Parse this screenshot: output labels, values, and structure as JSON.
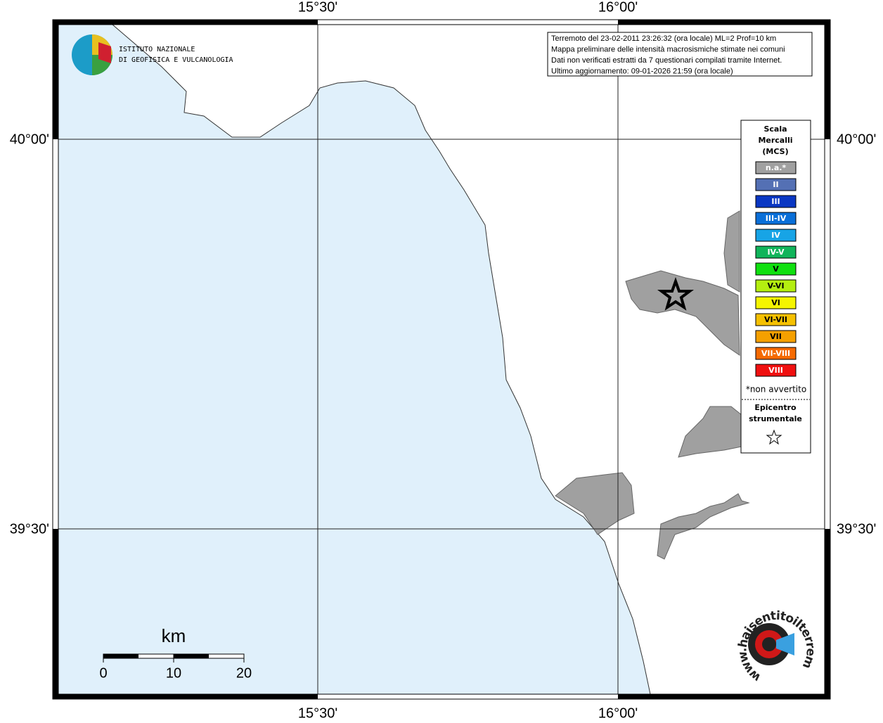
{
  "map": {
    "lon_labels": [
      "15°30'",
      "16°00'"
    ],
    "lat_labels": [
      "40°00'",
      "39°30'"
    ],
    "info": [
      "Terremoto del 23-02-2011 23:26:32 (ora locale) ML=2 Prof=10 km",
      "Mappa preliminare delle intensità macrosismiche stimate nei comuni",
      "Dati non verificati estratti da 7 questionari compilati tramite Internet.",
      "Ultimo aggiornamento: 09-01-2026 21:59 (ora locale)"
    ],
    "legend": {
      "title": [
        "Scala",
        "Mercalli",
        "(MCS)"
      ],
      "classes": [
        {
          "label": "n.a.*",
          "color": "#a0a0a0"
        },
        {
          "label": "II",
          "color": "#5470b4"
        },
        {
          "label": "III",
          "color": "#0a37c3"
        },
        {
          "label": "III-IV",
          "color": "#0a6fd8"
        },
        {
          "label": "IV",
          "color": "#17a4e6"
        },
        {
          "label": "IV-V",
          "color": "#10b45a"
        },
        {
          "label": "V",
          "color": "#10e010"
        },
        {
          "label": "V-VI",
          "color": "#b4ee10"
        },
        {
          "label": "VI",
          "color": "#f5f500"
        },
        {
          "label": "VI-VII",
          "color": "#f5c000"
        },
        {
          "label": "VII",
          "color": "#f5a000"
        },
        {
          "label": "VII-VIII",
          "color": "#f56a00"
        },
        {
          "label": "VIII",
          "color": "#f01010"
        }
      ],
      "note": "*non avvertito",
      "epicenter": [
        "Epicentro",
        "strumentale"
      ]
    },
    "scale_bar": {
      "unit": "km",
      "ticks": [
        "0",
        "10",
        "20"
      ]
    },
    "logos": {
      "ingv": [
        "ISTITUTO NAZIONALE",
        "DI GEOFISICA E VULCANOLOGIA"
      ],
      "hsit": "www.haisentitoilterremoto.it"
    }
  }
}
